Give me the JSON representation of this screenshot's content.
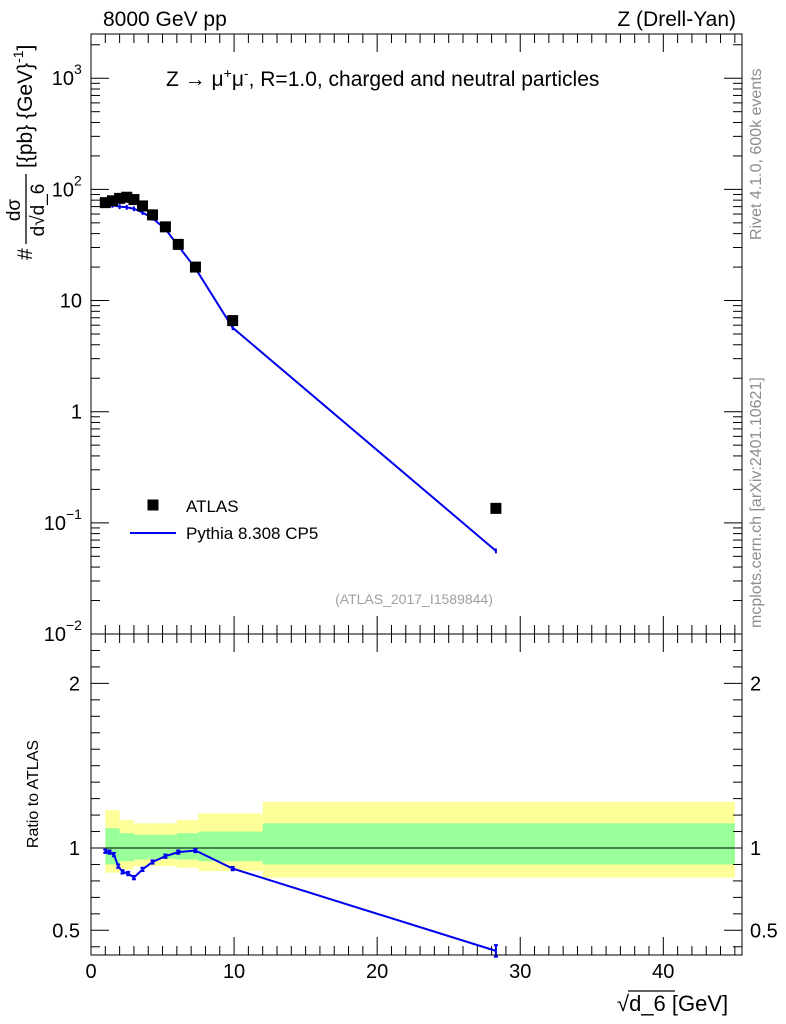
{
  "header": {
    "left": "8000 GeV pp",
    "right": "Z (Drell-Yan)"
  },
  "side_labels": {
    "rivet": "Rivet 4.1.0,  600k events",
    "mcplots": "mcplots.cern.ch [arXiv:2401.10621]"
  },
  "chart_data": [
    {
      "type": "scatter",
      "panel": "main",
      "title": "Z → μ⁺μ⁻, R=1.0, charged and neutral particles",
      "title_parts": {
        "prefix": "Z",
        "arrow": "→",
        "mu": "μ",
        "plus": "+",
        "minus": "-",
        "suffix": ", R=1.0, charged and neutral particles"
      },
      "ylabel": "# dσ / d√d_6 [{pb} {GeV}⁻¹]",
      "ylabel_parts": {
        "hash": "#",
        "num": "dσ",
        "den": "d√d_6",
        "units": "[{pb} {GeV}",
        "exp": "-1",
        "close": "]"
      },
      "yscale": "log",
      "ylim": [
        0.01,
        2500
      ],
      "xlim": [
        0,
        45.5
      ],
      "ytick_labels": [
        {
          "value": 0.01,
          "base": "10",
          "exp": "−2"
        },
        {
          "value": 0.1,
          "base": "10",
          "exp": "−1"
        },
        {
          "value": 1,
          "base": "1",
          "exp": ""
        },
        {
          "value": 10,
          "base": "10",
          "exp": ""
        },
        {
          "value": 100,
          "base": "10",
          "exp": "2"
        },
        {
          "value": 1000,
          "base": "10",
          "exp": "3"
        }
      ],
      "watermark": "(ATLAS_2017_I1589844)",
      "legend_position": "lower-left",
      "series": [
        {
          "name": "ATLAS",
          "style": "markers",
          "color": "#000000",
          "x": [
            1.0,
            1.5,
            2.0,
            2.5,
            3.0,
            3.6,
            4.3,
            5.2,
            6.1,
            7.3,
            9.9,
            28.3
          ],
          "y": [
            76,
            79,
            83,
            85,
            81,
            71,
            59,
            46,
            32,
            20,
            6.6,
            0.135
          ]
        },
        {
          "name": "Pythia 8.308 CP5",
          "style": "line",
          "color": "#0000ee",
          "x": [
            1.0,
            1.5,
            2.0,
            2.5,
            3.0,
            3.6,
            4.3,
            5.2,
            6.1,
            7.3,
            9.9,
            28.3
          ],
          "y": [
            72,
            72,
            70,
            69,
            67,
            62,
            55,
            44,
            31,
            19.5,
            5.7,
            0.056
          ]
        }
      ]
    },
    {
      "type": "line",
      "panel": "ratio",
      "ylabel": "Ratio to ATLAS",
      "xlabel": "√d_6 [GeV]",
      "xlabel_parts": {
        "radical": "√",
        "var": "d_6",
        "units": " [GeV]"
      },
      "ylim": [
        0.35,
        2.3
      ],
      "xlim": [
        0,
        45.5
      ],
      "xtick_labels": [
        "0",
        "10",
        "20",
        "30",
        "40"
      ],
      "xtick_values": [
        0,
        10,
        20,
        30,
        40
      ],
      "ytick_labels": [
        "0.5",
        "1",
        "2"
      ],
      "ytick_values": [
        0.5,
        1,
        2
      ],
      "uncertainty_bands": {
        "edges": [
          1,
          2,
          3,
          4,
          5,
          6,
          7.5,
          12,
          45
        ],
        "inner_lo": [
          0.9,
          0.92,
          0.93,
          0.935,
          0.935,
          0.93,
          0.92,
          0.9
        ],
        "inner_hi": [
          1.12,
          1.09,
          1.08,
          1.08,
          1.08,
          1.09,
          1.1,
          1.15
        ],
        "outer_lo": [
          0.85,
          0.87,
          0.89,
          0.89,
          0.89,
          0.88,
          0.86,
          0.82
        ],
        "outer_hi": [
          1.23,
          1.17,
          1.15,
          1.15,
          1.15,
          1.17,
          1.21,
          1.28
        ],
        "inner_color": "#99ff99",
        "outer_color": "#ffff99"
      },
      "series": [
        {
          "name": "Pythia 8.308 CP5",
          "color": "#0000ee",
          "x": [
            1.0,
            1.3,
            1.6,
            1.9,
            2.2,
            2.6,
            3.0,
            3.6,
            4.3,
            5.2,
            6.1,
            7.3,
            9.9,
            28.3
          ],
          "y": [
            0.98,
            0.975,
            0.96,
            0.89,
            0.855,
            0.845,
            0.82,
            0.87,
            0.915,
            0.95,
            0.975,
            0.985,
            0.875,
            0.375
          ]
        }
      ]
    }
  ]
}
